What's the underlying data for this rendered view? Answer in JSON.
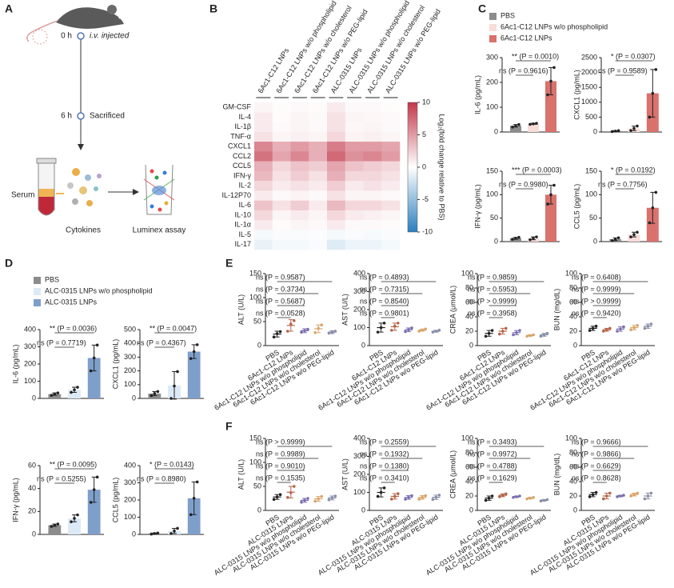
{
  "panel_labels": [
    "A",
    "B",
    "C",
    "D",
    "E",
    "F"
  ],
  "diagram": {
    "t0": "0 h",
    "inject": "i.v. injected",
    "t6": "6 h",
    "sacrifice": "Sacrificed",
    "serum": "Serum",
    "cytokines": "Cytokines",
    "assay": "Luminex assay"
  },
  "chart_data": [
    {
      "type": "heatmap",
      "rows": [
        "GM-CSF",
        "IL-4",
        "IL-1β",
        "TNF-α",
        "CXCL1",
        "CCL2",
        "CCL5",
        "IFN-γ",
        "IL-2",
        "IL-12P70",
        "IL-6",
        "IL-10",
        "IL-1α",
        "IL-5",
        "IL-17"
      ],
      "columns": [
        "6Ac1-C12 LNPs",
        "6Ac1-C12 LNPs w/o phospholipid",
        "6Ac1-C12 LNPs w/o cholesterol",
        "6Ac1-C12 LNPs w/o PEG-lipid",
        "ALC-0315 LNPs",
        "ALC-0315 LNPs w/o phospholipid",
        "ALC-0315 LNPs w/o cholesterol",
        "ALC-0315 LNPs w/o PEG-lipid"
      ],
      "values": [
        [
          0.5,
          0.2,
          0.3,
          0.2,
          1,
          0.3,
          0.3,
          0.2
        ],
        [
          1,
          0.2,
          0.5,
          0.3,
          1.5,
          0.5,
          0.4,
          0.3
        ],
        [
          1,
          0.3,
          0.5,
          0.3,
          1.5,
          0.4,
          0.5,
          0.3
        ],
        [
          1.5,
          0.5,
          0.8,
          0.5,
          2,
          0.6,
          0.8,
          0.5
        ],
        [
          6,
          4,
          5,
          4,
          6.5,
          5,
          5,
          4.5
        ],
        [
          7,
          4.5,
          6,
          4,
          7.5,
          5.5,
          6,
          5
        ],
        [
          4,
          2,
          3,
          2.5,
          4.5,
          3,
          2.5,
          2
        ],
        [
          3.5,
          1.5,
          2.5,
          1.5,
          4,
          2,
          2,
          1.5
        ],
        [
          2,
          1,
          1.5,
          1,
          2.5,
          1,
          1.5,
          1
        ],
        [
          1,
          0.3,
          0.6,
          0.3,
          1.5,
          0.5,
          0.5,
          0.3
        ],
        [
          3,
          1.5,
          2.5,
          1,
          3.5,
          2,
          2,
          1.5
        ],
        [
          2,
          0.5,
          1,
          0.5,
          2,
          1,
          0.8,
          0.5
        ],
        [
          1,
          0.2,
          0.5,
          0.3,
          1,
          0.3,
          0.3,
          0.2
        ],
        [
          -0.5,
          -0.3,
          -0.3,
          -0.2,
          -0.5,
          -0.3,
          -0.4,
          -0.3
        ],
        [
          -1,
          -0.5,
          -0.5,
          -0.3,
          -1.5,
          -0.8,
          -0.8,
          -0.5
        ]
      ],
      "colormap": [
        "#2b7fbd",
        "#ffffff",
        "#c2374a"
      ],
      "clim": [
        -10,
        10
      ],
      "cticks": [
        10,
        5,
        0,
        -5,
        -10
      ],
      "colorbar_label": "Log₂(fold change relative to PBS)"
    },
    {
      "type": "bar",
      "ylabel": "IL-6 (pg/mL)",
      "ylim": [
        0,
        300
      ],
      "yticks": [
        0,
        100,
        200,
        300
      ],
      "colors": [
        "#8c8c8c",
        "#f7dcd8",
        "#d9716c"
      ],
      "legend": [
        "PBS",
        "6Ac1-C12 LNPs w/o phospholipid",
        "6Ac1-C12 LNPs"
      ],
      "values": [
        25,
        33,
        205
      ],
      "errors": [
        5,
        2,
        55
      ],
      "points": [
        [
          20,
          25,
          30
        ],
        [
          31,
          33,
          35
        ],
        [
          150,
          205,
          260
        ]
      ],
      "comparisons": [
        "ns (P = 0.9616)",
        "** (P = 0.0010)"
      ]
    },
    {
      "type": "bar",
      "ylabel": "CXCL1 (pg/mL)",
      "ylim": [
        0,
        2500
      ],
      "yticks": [
        0,
        500,
        1000,
        1500,
        2000,
        2500
      ],
      "colors": [
        "#8c8c8c",
        "#f7dcd8",
        "#d9716c"
      ],
      "values": [
        30,
        120,
        1300
      ],
      "errors": [
        15,
        75,
        800
      ],
      "points": [
        [
          15,
          30,
          45
        ],
        [
          50,
          120,
          200
        ],
        [
          500,
          1300,
          2100
        ]
      ],
      "comparisons": [
        "ns (P = 0.9589)",
        "* (P = 0.0307)"
      ]
    },
    {
      "type": "bar",
      "ylabel": "IFN-γ (pg/mL)",
      "ylim": [
        0,
        150
      ],
      "yticks": [
        0,
        50,
        100,
        150
      ],
      "colors": [
        "#8c8c8c",
        "#f7dcd8",
        "#d9716c"
      ],
      "values": [
        7,
        7,
        100
      ],
      "errors": [
        2,
        3,
        20
      ],
      "points": [
        [
          5,
          7,
          9
        ],
        [
          4,
          7,
          10
        ],
        [
          80,
          100,
          120
        ]
      ],
      "comparisons": [
        "ns (P = 0.9980)",
        "*** (P = 0.0003)"
      ]
    },
    {
      "type": "bar",
      "ylabel": "CCL5 (pg/mL)",
      "ylim": [
        0,
        150
      ],
      "yticks": [
        0,
        50,
        100,
        150
      ],
      "colors": [
        "#8c8c8c",
        "#f7dcd8",
        "#d9716c"
      ],
      "values": [
        5,
        15,
        72
      ],
      "errors": [
        3,
        5,
        33
      ],
      "points": [
        [
          2,
          5,
          8
        ],
        [
          10,
          15,
          20
        ],
        [
          40,
          72,
          105
        ]
      ],
      "comparisons": [
        "ns (P = 0.7756)",
        "* (P = 0.0192)"
      ]
    },
    {
      "type": "bar",
      "ylabel": "IL-6 (pg/mL)",
      "ylim": [
        0,
        400
      ],
      "yticks": [
        0,
        100,
        200,
        300,
        400
      ],
      "colors": [
        "#8c8c8c",
        "#dce9f6",
        "#7f9fcb"
      ],
      "legend": [
        "PBS",
        "ALC-0315 LNPs w/o phospholipid",
        "ALC-0315 LNPs"
      ],
      "values": [
        25,
        50,
        235
      ],
      "errors": [
        7,
        15,
        75
      ],
      "points": [
        [
          18,
          25,
          32
        ],
        [
          35,
          50,
          65
        ],
        [
          160,
          235,
          310
        ]
      ],
      "comparisons": [
        "ns (P = 0.7719)",
        "** (P = 0.0036)"
      ]
    },
    {
      "type": "bar",
      "ylabel": "CXCL1 (pg/mL)",
      "ylim": [
        0,
        500
      ],
      "yticks": [
        0,
        100,
        200,
        300,
        400,
        500
      ],
      "colors": [
        "#8c8c8c",
        "#dce9f6",
        "#7f9fcb"
      ],
      "values": [
        35,
        95,
        340
      ],
      "errors": [
        15,
        100,
        50
      ],
      "points": [
        [
          20,
          35,
          50
        ],
        [
          0,
          90,
          195
        ],
        [
          290,
          340,
          390
        ]
      ],
      "comparisons": [
        "ns (P = 0.4367)",
        "** (P = 0.0047)"
      ]
    },
    {
      "type": "bar",
      "ylabel": "IFN-γ (pg/mL)",
      "ylim": [
        0,
        60
      ],
      "yticks": [
        0,
        20,
        40,
        60
      ],
      "colors": [
        "#8c8c8c",
        "#dce9f6",
        "#7f9fcb"
      ],
      "values": [
        8,
        14,
        39
      ],
      "errors": [
        1,
        3,
        11
      ],
      "points": [
        [
          7,
          8,
          9
        ],
        [
          11,
          14,
          17
        ],
        [
          28,
          39,
          50
        ]
      ],
      "comparisons": [
        "ns (P = 0.5255)",
        "** (P = 0.0095)"
      ]
    },
    {
      "type": "bar",
      "ylabel": "CCL5 (pg/mL)",
      "ylim": [
        0,
        400
      ],
      "yticks": [
        0,
        100,
        200,
        300,
        400
      ],
      "colors": [
        "#8c8c8c",
        "#dce9f6",
        "#7f9fcb"
      ],
      "values": [
        5,
        20,
        210
      ],
      "errors": [
        3,
        15,
        95
      ],
      "points": [
        [
          2,
          5,
          8
        ],
        [
          5,
          20,
          35
        ],
        [
          115,
          210,
          305
        ]
      ],
      "comparisons": [
        "ns (P = 0.8980)",
        "* (P = 0.0143)"
      ]
    },
    {
      "type": "dot",
      "ylabel": "ALT (U/L)",
      "ylim": [
        0,
        150
      ],
      "yticks": [
        0,
        50,
        100,
        150
      ],
      "colors": [
        "#222222",
        "#b5654a",
        "#7b6fb0",
        "#d9a56b",
        "#8a8fa8"
      ],
      "categories": [
        "PBS",
        "6Ac1-C12 LNPs",
        "6Ac1-C12 LNPs w/o phospholipid",
        "6Ac1-C12 LNPs w/o cholesterol",
        "6Ac1-C12 LNPs w/o PEG-lipid"
      ],
      "values": [
        24,
        42,
        31,
        35,
        28
      ],
      "errors": [
        6,
        12,
        4,
        8,
        3
      ],
      "points": [
        [
          18,
          25,
          29
        ],
        [
          30,
          45,
          52
        ],
        [
          28,
          31,
          34
        ],
        [
          27,
          36,
          43
        ],
        [
          26,
          28,
          30
        ]
      ],
      "comparisons": [
        "ns (P = 0.0528)",
        "ns (P = 0.5687)",
        "ns (P = 0.3734)",
        "ns (P = 0.9587)"
      ]
    },
    {
      "type": "dot",
      "ylabel": "AST (U/L)",
      "ylim": [
        0,
        400
      ],
      "yticks": [
        0,
        100,
        200,
        300,
        400
      ],
      "colors": [
        "#222222",
        "#b5654a",
        "#7b6fb0",
        "#d9a56b",
        "#8a8fa8"
      ],
      "categories": [
        "PBS",
        "6Ac1-C12 LNPs",
        "6Ac1-C12 LNPs w/o phospholipid",
        "6Ac1-C12 LNPs w/o cholesterol",
        "6Ac1-C12 LNPs w/o PEG-lipid"
      ],
      "values": [
        100,
        105,
        88,
        86,
        80
      ],
      "errors": [
        25,
        20,
        10,
        6,
        5
      ],
      "points": [
        [
          75,
          100,
          125
        ],
        [
          85,
          108,
          125
        ],
        [
          78,
          88,
          98
        ],
        [
          80,
          86,
          92
        ],
        [
          75,
          80,
          86
        ]
      ],
      "comparisons": [
        "ns (P = 0.9801)",
        "ns (P = 0.8540)",
        "ns (P = 0.7315)",
        "ns (P = 0.4893)"
      ]
    },
    {
      "type": "dot",
      "ylabel": "CREA (μmol/L)",
      "ylim": [
        0,
        100
      ],
      "yticks": [
        0,
        20,
        40,
        60,
        80,
        100
      ],
      "colors": [
        "#222222",
        "#b5654a",
        "#7b6fb0",
        "#d9a56b",
        "#8a8fa8"
      ],
      "categories": [
        "PBS",
        "6Ac1-C12 LNPs",
        "6Ac1-C12 LNPs w/o phospholipid",
        "6Ac1-C12 LNPs w/o cholesterol",
        "6Ac1-C12 LNPs w/o PEG-lipid"
      ],
      "values": [
        17,
        20,
        18,
        14,
        15
      ],
      "errors": [
        4,
        4,
        3,
        1,
        2
      ],
      "points": [
        [
          13,
          17,
          21
        ],
        [
          16,
          20,
          24
        ],
        [
          15,
          18,
          21
        ],
        [
          13,
          14,
          15
        ],
        [
          13,
          15,
          17
        ]
      ],
      "comparisons": [
        "ns (P = 0.3958)",
        "ns (P > 0.9999)",
        "ns (P = 0.5953)",
        "ns (P = 0.9859)"
      ]
    },
    {
      "type": "dot",
      "ylabel": "BUN (mg/dL)",
      "ylim": [
        0,
        100
      ],
      "yticks": [
        0,
        20,
        40,
        60,
        80,
        100
      ],
      "colors": [
        "#222222",
        "#b5654a",
        "#7b6fb0",
        "#d9a56b",
        "#8a8fa8"
      ],
      "categories": [
        "PBS",
        "6Ac1-C12 LNPs",
        "6Ac1-C12 LNPs w/o phospholipid",
        "6Ac1-C12 LNPs w/o cholesterol",
        "6Ac1-C12 LNPs w/o PEG-lipid"
      ],
      "values": [
        24,
        22,
        23,
        25,
        27
      ],
      "errors": [
        3,
        2,
        3,
        3,
        3
      ],
      "points": [
        [
          21,
          24,
          27
        ],
        [
          20,
          22,
          24
        ],
        [
          20,
          23,
          26
        ],
        [
          22,
          25,
          28
        ],
        [
          24,
          27,
          30
        ]
      ],
      "comparisons": [
        "ns (P = 0.9420)",
        "ns (P > 0.9999)",
        "ns (P = 0.9999)",
        "ns (P = 0.6408)"
      ]
    },
    {
      "type": "dot",
      "ylabel": "ALT (U/L)",
      "ylim": [
        0,
        150
      ],
      "yticks": [
        0,
        50,
        100,
        150
      ],
      "colors": [
        "#222222",
        "#b5654a",
        "#7b6fb0",
        "#d9a56b",
        "#8a8fa8"
      ],
      "categories": [
        "PBS",
        "ALC-0315 LNPs",
        "ALC-0315 LNPs w/o phospholipid",
        "ALC-0315 LNPs w/o cholesterol",
        "ALC-0315 LNPs w/o PEG-lipid"
      ],
      "values": [
        28,
        38,
        21,
        24,
        26
      ],
      "errors": [
        5,
        12,
        4,
        5,
        4
      ],
      "points": [
        [
          23,
          28,
          33
        ],
        [
          27,
          37,
          50
        ],
        [
          17,
          21,
          25
        ],
        [
          19,
          24,
          29
        ],
        [
          22,
          26,
          30
        ]
      ],
      "comparisons": [
        "ns (P = 0.1535)",
        "ns (P = 0.9010)",
        "ns (P = 0.9989)",
        "ns (P > 0.9999)"
      ]
    },
    {
      "type": "dot",
      "ylabel": "AST (U/L)",
      "ylim": [
        0,
        400
      ],
      "yticks": [
        0,
        100,
        200,
        300,
        400
      ],
      "colors": [
        "#222222",
        "#b5654a",
        "#7b6fb0",
        "#d9a56b",
        "#8a8fa8"
      ],
      "categories": [
        "PBS",
        "ALC-0315 LNPs",
        "ALC-0315 LNPs w/o phospholipid",
        "ALC-0315 LNPs w/o cholesterol",
        "ALC-0315 LNPs w/o PEG-lipid"
      ],
      "values": [
        100,
        78,
        72,
        72,
        73
      ],
      "errors": [
        25,
        15,
        10,
        10,
        12
      ],
      "points": [
        [
          78,
          100,
          125
        ],
        [
          63,
          78,
          93
        ],
        [
          62,
          72,
          82
        ],
        [
          62,
          72,
          82
        ],
        [
          61,
          73,
          85
        ]
      ],
      "comparisons": [
        "ns (P = 0.3410)",
        "ns (P = 0.1380)",
        "ns (P = 0.1932)",
        "ns (P = 0.2559)"
      ]
    },
    {
      "type": "dot",
      "ylabel": "CREA (μmol/L)",
      "ylim": [
        0,
        100
      ],
      "yticks": [
        0,
        20,
        40,
        60,
        80,
        100
      ],
      "colors": [
        "#222222",
        "#b5654a",
        "#7b6fb0",
        "#d9a56b",
        "#8a8fa8"
      ],
      "categories": [
        "PBS",
        "ALC-0315 LNPs",
        "ALC-0315 LNPs w/o phospholipid",
        "ALC-0315 LNPs w/o cholesterol",
        "ALC-0315 LNPs w/o PEG-lipid"
      ],
      "values": [
        17,
        21,
        19,
        17,
        14
      ],
      "errors": [
        3,
        2,
        1,
        1,
        1
      ],
      "points": [
        [
          14,
          17,
          20
        ],
        [
          19,
          21,
          23
        ],
        [
          18,
          19,
          20
        ],
        [
          16,
          17,
          18
        ],
        [
          13,
          14,
          15
        ]
      ],
      "comparisons": [
        "ns (P = 0.1629)",
        "ns (P = 0.4788)",
        "ns (P = 0.9972)",
        "ns (P = 0.3493)"
      ]
    },
    {
      "type": "dot",
      "ylabel": "BUN (mg/dL)",
      "ylim": [
        0,
        100
      ],
      "yticks": [
        0,
        20,
        40,
        60,
        80,
        100
      ],
      "colors": [
        "#222222",
        "#b5654a",
        "#7b6fb0",
        "#d9a56b",
        "#8a8fa8"
      ],
      "categories": [
        "PBS",
        "ALC-0315 LNPs",
        "ALC-0315 LNPs w/o phospholipid",
        "ALC-0315 LNPs w/o cholesterol",
        "ALC-0315 LNPs w/o PEG-lipid"
      ],
      "values": [
        22,
        20,
        20,
        22,
        20
      ],
      "errors": [
        3,
        4,
        1,
        2,
        4
      ],
      "points": [
        [
          19,
          22,
          25
        ],
        [
          16,
          20,
          24
        ],
        [
          19,
          20,
          21
        ],
        [
          20,
          22,
          24
        ],
        [
          16,
          20,
          24
        ]
      ],
      "comparisons": [
        "ns (P = 0.8628)",
        "ns (P = 0.6629)",
        "ns (P = 0.9866)",
        "ns (P = 0.9666)"
      ]
    }
  ]
}
